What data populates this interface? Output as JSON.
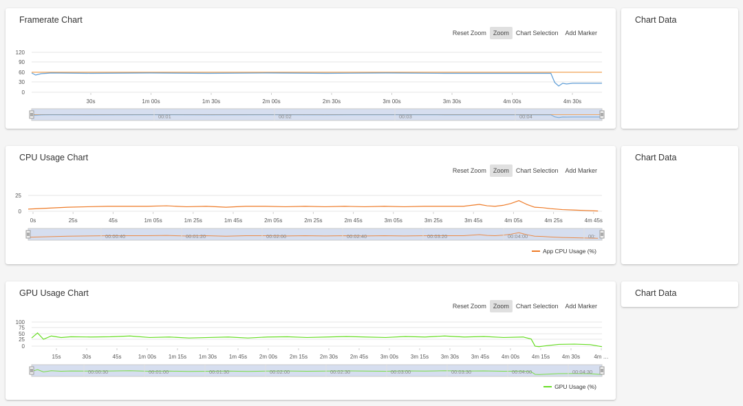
{
  "toolbar": {
    "reset_zoom": "Reset Zoom",
    "zoom": "Zoom",
    "chart_selection": "Chart Selection",
    "add_marker": "Add Marker"
  },
  "side_panel_title": "Chart Data",
  "charts": [
    {
      "title": "Framerate Chart",
      "y_ticks": [
        "120",
        "90",
        "60",
        "30",
        "0"
      ],
      "x_ticks": [
        "30s",
        "1m 00s",
        "1m 30s",
        "2m 00s",
        "2m 30s",
        "3m 00s",
        "3m 30s",
        "4m 00s",
        "4m 30s"
      ],
      "nav_ticks": [
        "00:01",
        "00:02",
        "00:03",
        "00:04"
      ],
      "legend": ""
    },
    {
      "title": "CPU Usage Chart",
      "y_ticks": [
        "25",
        "0"
      ],
      "x_ticks": [
        "0s",
        "25s",
        "45s",
        "1m 05s",
        "1m 25s",
        "1m 45s",
        "2m 05s",
        "2m 25s",
        "2m 45s",
        "3m 05s",
        "3m 25s",
        "3m 45s",
        "4m 05s",
        "4m 25s",
        "4m 45s"
      ],
      "nav_ticks": [
        "00:00:40",
        "00:01:20",
        "00:02:00",
        "00:02:40",
        "00:03:20",
        "00:04:00",
        "00:"
      ],
      "legend": "App CPU Usage (%)"
    },
    {
      "title": "GPU Usage Chart",
      "y_ticks": [
        "100",
        "75",
        "50",
        "25",
        "0"
      ],
      "x_ticks": [
        "15s",
        "30s",
        "45s",
        "1m 00s",
        "1m 15s",
        "1m 30s",
        "1m 45s",
        "2m 00s",
        "2m 15s",
        "2m 30s",
        "2m 45s",
        "3m 00s",
        "3m 15s",
        "3m 30s",
        "3m 45s",
        "4m 00s",
        "4m 15s",
        "4m 30s",
        "4m …"
      ],
      "nav_ticks": [
        "00:00:30",
        "00:01:00",
        "00:01:30",
        "00:02:00",
        "00:02:30",
        "00:03:00",
        "00:03:30",
        "00:04:00",
        "00:04:30"
      ],
      "legend": "GPU Usage (%)"
    }
  ],
  "chart_data": [
    {
      "type": "line",
      "title": "Framerate Chart",
      "x_unit": "seconds",
      "ylim": [
        0,
        120
      ],
      "series": [
        {
          "color": "#f0a050",
          "x": [
            0,
            30,
            60,
            90,
            120,
            150,
            180,
            210,
            240,
            260,
            280,
            290
          ],
          "y": [
            60,
            60,
            60,
            60,
            60,
            60,
            60,
            60,
            60,
            60,
            60,
            60
          ]
        },
        {
          "color": "#5b9bd5",
          "x": [
            0,
            2,
            5,
            10,
            30,
            60,
            90,
            120,
            150,
            180,
            210,
            240,
            255,
            264,
            266,
            268,
            270,
            272,
            275,
            280,
            290
          ],
          "y": [
            58,
            52,
            56,
            58,
            57,
            58,
            57,
            58,
            57,
            58,
            57,
            57,
            57,
            57,
            30,
            20,
            28,
            26,
            28,
            28,
            28
          ]
        }
      ]
    },
    {
      "type": "line",
      "title": "CPU Usage Chart",
      "x_unit": "seconds",
      "ylim": [
        0,
        35
      ],
      "series": [
        {
          "name": "App CPU Usage (%)",
          "color": "#ee7a26",
          "x": [
            0,
            10,
            20,
            30,
            40,
            50,
            60,
            70,
            80,
            90,
            100,
            110,
            120,
            130,
            140,
            150,
            160,
            170,
            180,
            190,
            200,
            210,
            220,
            228,
            232,
            236,
            240,
            244,
            248,
            252,
            256,
            260,
            264,
            270,
            276,
            282,
            288
          ],
          "y": [
            6,
            8,
            10,
            11,
            12,
            12,
            12,
            13,
            11,
            12,
            10,
            12,
            12,
            11,
            12,
            11,
            12,
            11,
            12,
            11,
            12,
            12,
            12,
            16,
            13,
            12,
            14,
            18,
            24,
            16,
            10,
            9,
            7,
            5,
            4,
            3,
            2
          ]
        }
      ]
    },
    {
      "type": "line",
      "title": "GPU Usage Chart",
      "x_unit": "seconds",
      "ylim": [
        0,
        100
      ],
      "series": [
        {
          "name": "GPU Usage (%)",
          "color": "#66dd22",
          "x": [
            0,
            3,
            6,
            10,
            15,
            20,
            30,
            40,
            50,
            60,
            70,
            80,
            90,
            100,
            110,
            120,
            130,
            140,
            150,
            160,
            170,
            180,
            190,
            200,
            210,
            220,
            230,
            240,
            250,
            254,
            256,
            258,
            262,
            268,
            276,
            284,
            290
          ],
          "y": [
            40,
            60,
            35,
            48,
            42,
            45,
            44,
            45,
            48,
            42,
            44,
            40,
            42,
            44,
            40,
            44,
            45,
            42,
            44,
            46,
            44,
            42,
            46,
            44,
            48,
            44,
            46,
            42,
            44,
            36,
            8,
            6,
            10,
            15,
            16,
            14,
            6
          ]
        }
      ]
    }
  ]
}
